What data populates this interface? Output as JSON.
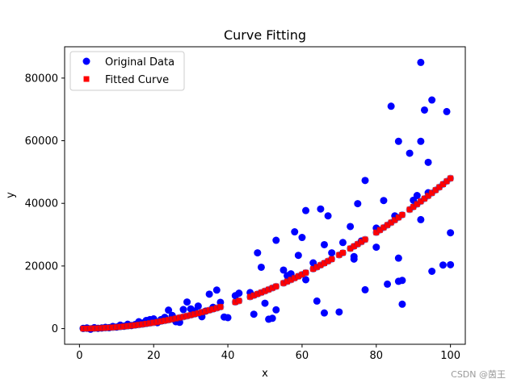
{
  "chart_data": {
    "type": "scatter",
    "title": "Curve Fitting",
    "xlabel": "x",
    "ylabel": "y",
    "xlim": [
      -4,
      104
    ],
    "ylim": [
      -5000,
      90000
    ],
    "xticks": [
      0,
      20,
      40,
      60,
      80,
      100
    ],
    "yticks": [
      0,
      20000,
      40000,
      60000,
      80000
    ],
    "ytick_labels": [
      "0",
      "20000",
      "40000",
      "60000",
      "80000"
    ],
    "legend_position": "upper-left",
    "series": [
      {
        "name": "Original Data",
        "marker": "circle",
        "color": "#0000ff",
        "points": [
          [
            1,
            100
          ],
          [
            2,
            200
          ],
          [
            3,
            -200
          ],
          [
            4,
            300
          ],
          [
            5,
            100
          ],
          [
            6,
            200
          ],
          [
            7,
            400
          ],
          [
            8,
            300
          ],
          [
            9,
            700
          ],
          [
            10,
            500
          ],
          [
            11,
            1100
          ],
          [
            12,
            800
          ],
          [
            13,
            1400
          ],
          [
            14,
            1000
          ],
          [
            15,
            1300
          ],
          [
            16,
            2200
          ],
          [
            17,
            1800
          ],
          [
            18,
            2600
          ],
          [
            19,
            2900
          ],
          [
            20,
            3100
          ],
          [
            21,
            1900
          ],
          [
            22,
            2900
          ],
          [
            23,
            3600
          ],
          [
            24,
            5900
          ],
          [
            25,
            4200
          ],
          [
            26,
            2200
          ],
          [
            27,
            2000
          ],
          [
            28,
            6100
          ],
          [
            29,
            8500
          ],
          [
            30,
            6300
          ],
          [
            31,
            5600
          ],
          [
            32,
            7200
          ],
          [
            33,
            3800
          ],
          [
            34,
            5600
          ],
          [
            35,
            11000
          ],
          [
            36,
            6800
          ],
          [
            37,
            12300
          ],
          [
            38,
            8400
          ],
          [
            39,
            3700
          ],
          [
            40,
            3500
          ],
          [
            42,
            10500
          ],
          [
            43,
            11300
          ],
          [
            46,
            11500
          ],
          [
            47,
            4600
          ],
          [
            48,
            24200
          ],
          [
            49,
            19600
          ],
          [
            50,
            8100
          ],
          [
            51,
            3000
          ],
          [
            52,
            3300
          ],
          [
            53,
            28200
          ],
          [
            53,
            6000
          ],
          [
            55,
            18700
          ],
          [
            56,
            16900
          ],
          [
            57,
            17500
          ],
          [
            58,
            30900
          ],
          [
            59,
            23400
          ],
          [
            60,
            29100
          ],
          [
            61,
            15600
          ],
          [
            61,
            37700
          ],
          [
            63,
            21000
          ],
          [
            64,
            8800
          ],
          [
            65,
            38200
          ],
          [
            66,
            5000
          ],
          [
            66,
            26800
          ],
          [
            67,
            36000
          ],
          [
            68,
            24200
          ],
          [
            70,
            5300
          ],
          [
            71,
            27500
          ],
          [
            73,
            32600
          ],
          [
            74,
            22200
          ],
          [
            74,
            23000
          ],
          [
            75,
            39900
          ],
          [
            76,
            28000
          ],
          [
            77,
            47300
          ],
          [
            77,
            12400
          ],
          [
            80,
            26000
          ],
          [
            80,
            32100
          ],
          [
            82,
            40900
          ],
          [
            83,
            14200
          ],
          [
            84,
            71000
          ],
          [
            85,
            36000
          ],
          [
            86,
            59800
          ],
          [
            86,
            22500
          ],
          [
            86,
            15100
          ],
          [
            87,
            15400
          ],
          [
            87,
            7800
          ],
          [
            89,
            56000
          ],
          [
            90,
            41000
          ],
          [
            91,
            42500
          ],
          [
            92,
            85000
          ],
          [
            92,
            59800
          ],
          [
            92,
            34800
          ],
          [
            93,
            69800
          ],
          [
            94,
            43400
          ],
          [
            94,
            53100
          ],
          [
            95,
            73000
          ],
          [
            95,
            18300
          ],
          [
            98,
            20300
          ],
          [
            99,
            69300
          ],
          [
            100,
            30600
          ],
          [
            100,
            20400
          ]
        ]
      },
      {
        "name": "Fitted Curve",
        "marker": "square",
        "color": "#ff0000",
        "formula": "y = 4.8 * x^2",
        "x": [
          1,
          2,
          3,
          4,
          5,
          6,
          7,
          8,
          9,
          10,
          11,
          12,
          13,
          14,
          15,
          16,
          17,
          18,
          19,
          20,
          21,
          22,
          23,
          24,
          25,
          26,
          27,
          28,
          29,
          30,
          31,
          32,
          33,
          34,
          35,
          36,
          37,
          38,
          42,
          43,
          46,
          47,
          48,
          49,
          50,
          51,
          52,
          53,
          55,
          56,
          57,
          58,
          59,
          60,
          61,
          63,
          64,
          65,
          66,
          67,
          68,
          70,
          71,
          73,
          74,
          75,
          76,
          77,
          80,
          81,
          82,
          83,
          84,
          85,
          86,
          87,
          89,
          90,
          91,
          92,
          93,
          94,
          95,
          96,
          97,
          98,
          99,
          100
        ]
      }
    ]
  },
  "watermark": "CSDN @茵王"
}
